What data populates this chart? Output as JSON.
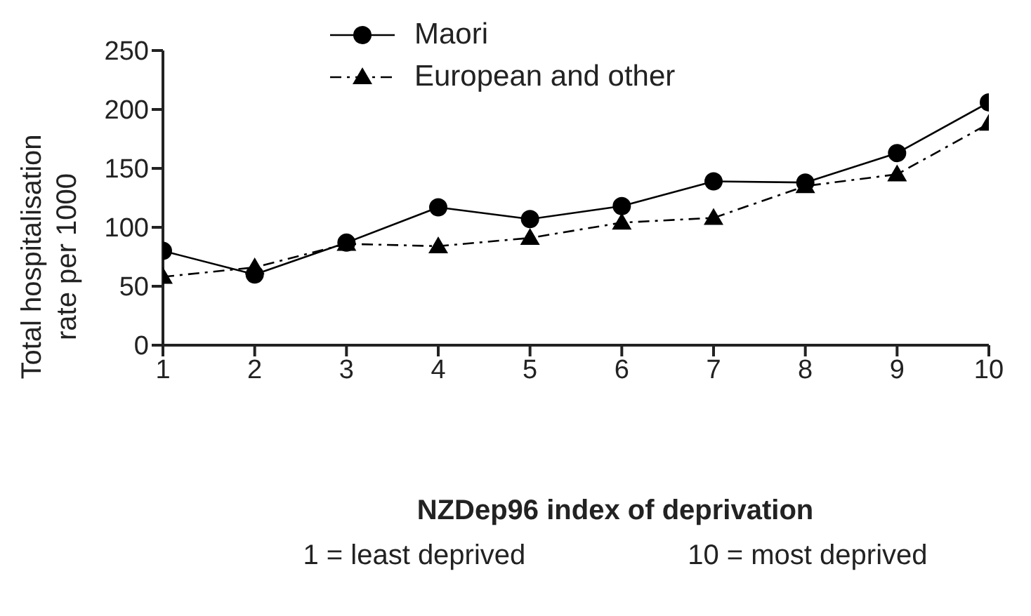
{
  "chart_data": {
    "type": "line",
    "xlabel": "NZDep96 index of deprivation",
    "ylabel": "Total hospitalisation rate per 1000",
    "annotations": [
      "1 = least deprived",
      "10 = most deprived"
    ],
    "x": [
      1,
      2,
      3,
      4,
      5,
      6,
      7,
      8,
      9,
      10
    ],
    "series": [
      {
        "name": "Maori",
        "color": "#000000",
        "marker": "circle",
        "line_style": "solid",
        "values": [
          80,
          60,
          87,
          117,
          107,
          118,
          139,
          138,
          163,
          206
        ]
      },
      {
        "name": "European and other",
        "color": "#000000",
        "marker": "triangle",
        "line_style": "dashed",
        "values": [
          58,
          66,
          86,
          84,
          91,
          104,
          108,
          135,
          145,
          188
        ]
      }
    ],
    "xlim": [
      1,
      10
    ],
    "xticks": [
      1,
      2,
      3,
      4,
      5,
      6,
      7,
      8,
      9,
      10
    ],
    "ylim": [
      0,
      250
    ],
    "yticks": [
      0,
      50,
      100,
      150,
      200,
      250
    ],
    "grid": false,
    "legend": "top left"
  }
}
